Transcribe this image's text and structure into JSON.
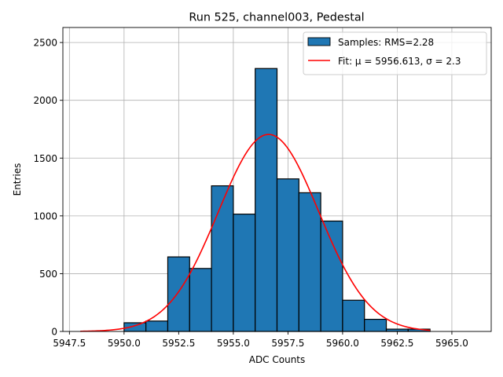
{
  "chart_data": {
    "type": "histogram",
    "title": "Run 525, channel003, Pedestal",
    "xlabel": "ADC Counts",
    "ylabel": "Entries",
    "xlim": [
      5947.2,
      5966.8
    ],
    "ylim": [
      0,
      2630
    ],
    "grid": true,
    "legend_position": "top-right",
    "x_ticks": [
      5947.5,
      5950.0,
      5952.5,
      5955.0,
      5957.5,
      5960.0,
      5962.5,
      5965.0
    ],
    "x_tick_labels": [
      "5947.5",
      "5950.0",
      "5952.5",
      "5955.0",
      "5957.5",
      "5960.0",
      "5962.5",
      "5965.0"
    ],
    "y_ticks": [
      0,
      500,
      1000,
      1500,
      2000,
      2500
    ],
    "y_tick_labels": [
      "0",
      "500",
      "1000",
      "1500",
      "2000",
      "2500"
    ],
    "bins": [
      {
        "x0": 5950.0,
        "x1": 5951.0,
        "count": 75
      },
      {
        "x0": 5951.0,
        "x1": 5952.0,
        "count": 90
      },
      {
        "x0": 5952.0,
        "x1": 5953.0,
        "count": 645
      },
      {
        "x0": 5953.0,
        "x1": 5954.0,
        "count": 545
      },
      {
        "x0": 5954.0,
        "x1": 5955.0,
        "count": 1260
      },
      {
        "x0": 5955.0,
        "x1": 5956.0,
        "count": 1015
      },
      {
        "x0": 5956.0,
        "x1": 5957.0,
        "count": 2275
      },
      {
        "x0": 5957.0,
        "x1": 5958.0,
        "count": 1320
      },
      {
        "x0": 5958.0,
        "x1": 5959.0,
        "count": 1200
      },
      {
        "x0": 5959.0,
        "x1": 5960.0,
        "count": 955
      },
      {
        "x0": 5960.0,
        "x1": 5961.0,
        "count": 270
      },
      {
        "x0": 5961.0,
        "x1": 5962.0,
        "count": 105
      },
      {
        "x0": 5962.0,
        "x1": 5963.0,
        "count": 20
      },
      {
        "x0": 5963.0,
        "x1": 5964.0,
        "count": 20
      }
    ],
    "fit": {
      "mu": 5956.613,
      "sigma": 2.3,
      "amplitude": 1705,
      "x_range": [
        5948.0,
        5964.0
      ]
    },
    "series": [
      {
        "name": "Samples: RMS=2.28",
        "color": "#1f77b4",
        "kind": "histogram"
      },
      {
        "name": "Fit: μ = 5956.613, σ = 2.3",
        "color": "#ff0000",
        "kind": "line"
      }
    ]
  }
}
